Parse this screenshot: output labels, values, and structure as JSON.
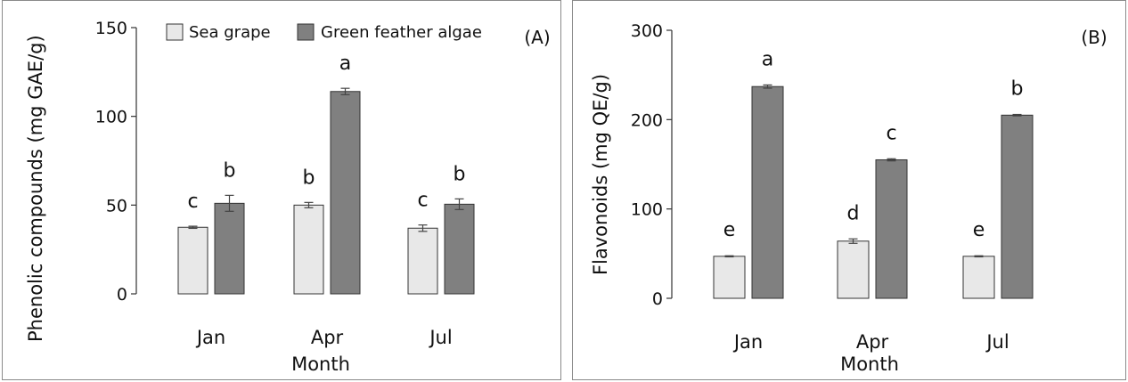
{
  "chart_data": [
    {
      "type": "bar",
      "panel_label": "(A)",
      "categories": [
        "Jan",
        "Apr",
        "Jul"
      ],
      "xlabel": "Month",
      "ylabel": "Phenolic compounds (mg GAE/g)",
      "ylim": [
        0,
        150
      ],
      "yticks": [
        0,
        50,
        100,
        150
      ],
      "grid": false,
      "legend_placement": "top",
      "series": [
        {
          "name": "Sea grape",
          "color": "#e8e8e8",
          "values": [
            37.5,
            50,
            37
          ],
          "errors": [
            0.6,
            1.5,
            1.8
          ],
          "letters": [
            "c",
            "b",
            "c"
          ]
        },
        {
          "name": "Green feather algae",
          "color": "#808080",
          "values": [
            51,
            114,
            50.5
          ],
          "errors": [
            4.5,
            1.8,
            3
          ],
          "letters": [
            "b",
            "a",
            "b"
          ]
        }
      ]
    },
    {
      "type": "bar",
      "panel_label": "(B)",
      "categories": [
        "Jan",
        "Apr",
        "Jul"
      ],
      "xlabel": "Month",
      "ylabel": "Flavonoids (mg QE/g)",
      "ylim": [
        0,
        300
      ],
      "yticks": [
        0,
        100,
        200,
        300
      ],
      "grid": false,
      "series": [
        {
          "name": "Sea grape",
          "color": "#e8e8e8",
          "values": [
            47,
            64,
            47
          ],
          "errors": [
            0.6,
            2.5,
            0.6
          ],
          "letters": [
            "e",
            "d",
            "e"
          ]
        },
        {
          "name": "Green feather algae",
          "color": "#808080",
          "values": [
            237,
            155,
            205
          ],
          "errors": [
            1.8,
            1.2,
            0.8
          ],
          "letters": [
            "a",
            "c",
            "b"
          ]
        }
      ]
    }
  ]
}
